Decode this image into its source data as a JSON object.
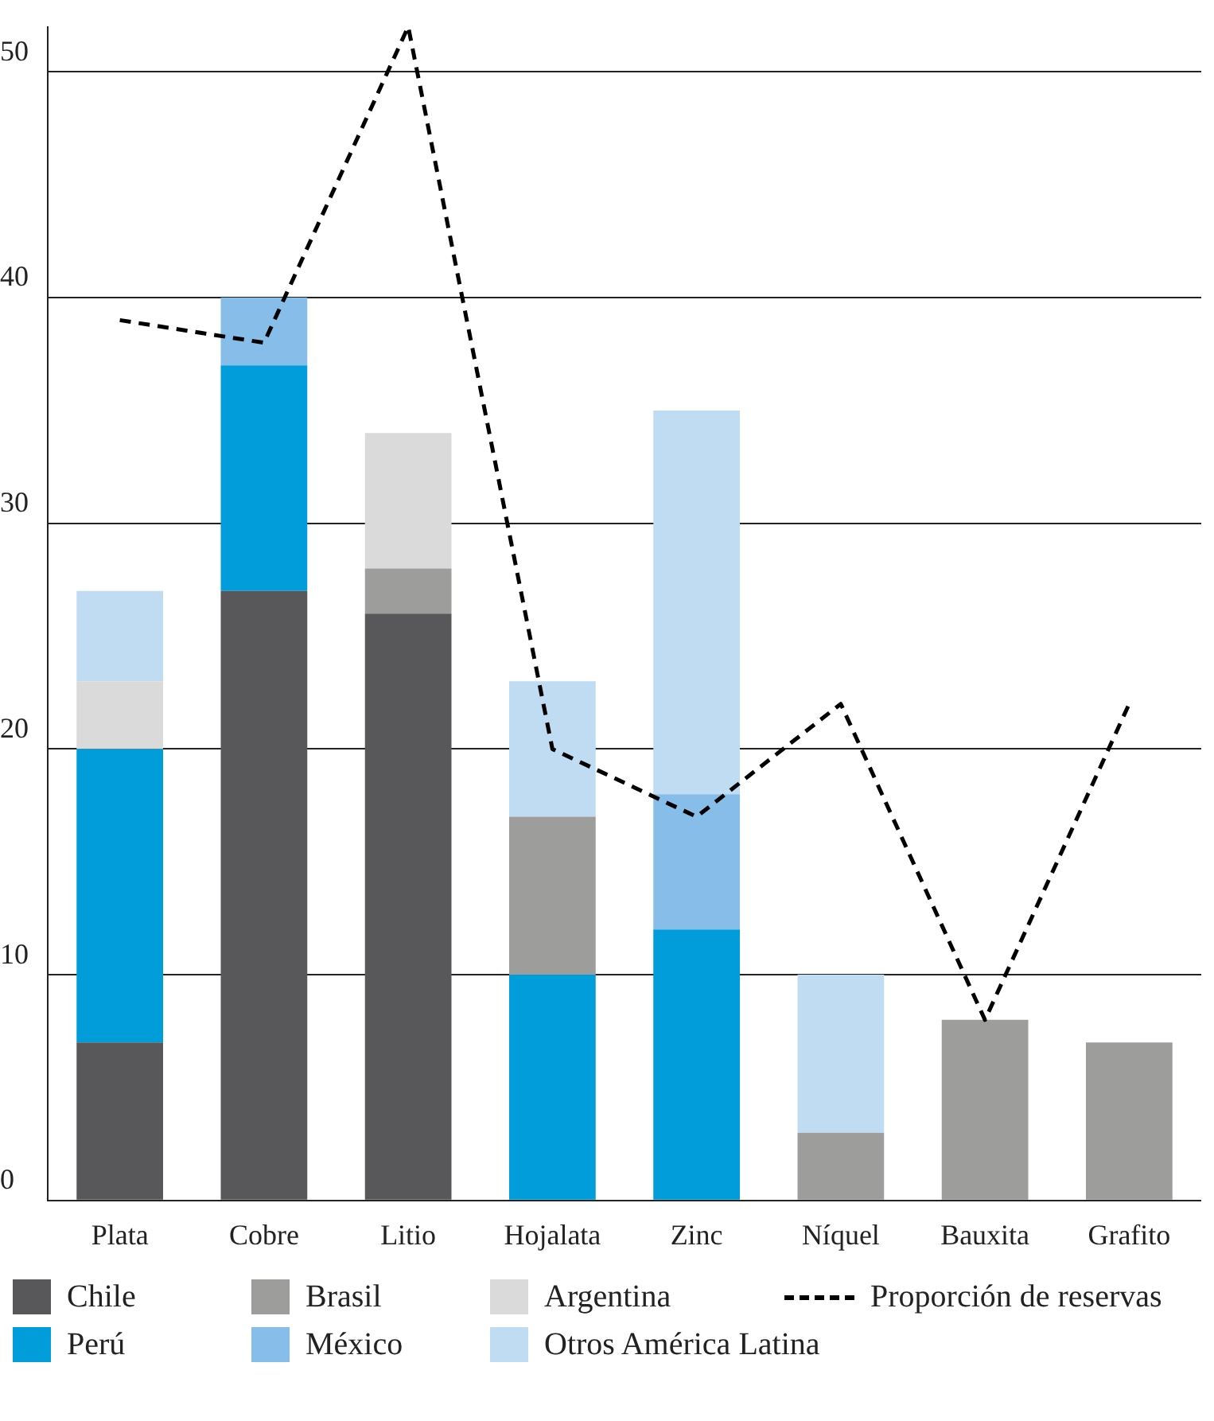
{
  "chart_data": {
    "type": "bar",
    "stacked": true,
    "categories": [
      "Plata",
      "Cobre",
      "Litio",
      "Hojalata",
      "Zinc",
      "Níquel",
      "Bauxita",
      "Grafito"
    ],
    "series": [
      {
        "name": "Chile",
        "color": "#58585a",
        "values": [
          7,
          27,
          26,
          null,
          null,
          null,
          null,
          null
        ]
      },
      {
        "name": "Perú",
        "color": "#009ddb",
        "values": [
          13,
          10,
          null,
          10,
          12,
          null,
          null,
          null
        ]
      },
      {
        "name": "Brasil",
        "color": "#9d9d9c",
        "values": [
          null,
          null,
          2,
          7,
          null,
          3,
          8,
          7
        ]
      },
      {
        "name": "México",
        "color": "#86bde9",
        "values": [
          null,
          3,
          null,
          null,
          6,
          null,
          null,
          null
        ]
      },
      {
        "name": "Argentina",
        "color": "#dadada",
        "values": [
          3,
          null,
          6,
          null,
          null,
          null,
          null,
          null
        ]
      },
      {
        "name": "Otros América Latina",
        "color": "#bfdcf3",
        "values": [
          4,
          null,
          null,
          6,
          17,
          7,
          null,
          null
        ]
      },
      {
        "name": "Proporción de reservas",
        "type": "line",
        "line_style": "dashed",
        "marker": "none",
        "color": "#000000",
        "values": [
          39,
          38,
          52,
          20,
          17,
          22,
          8,
          22
        ]
      }
    ],
    "ylim": [
      0,
      52
    ],
    "yticks": [
      0,
      10,
      20,
      30,
      40,
      50
    ],
    "grid": "y",
    "legend": "bottom"
  }
}
